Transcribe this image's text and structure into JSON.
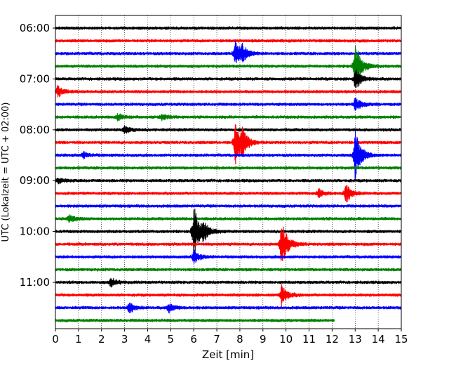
{
  "chart_data": {
    "type": "line",
    "title": "",
    "xlabel": "Zeit  [min]",
    "ylabel": "UTC (Lokalzeit = UTC + 02:00)",
    "xlim": [
      0,
      15
    ],
    "x_ticks": [
      0,
      1,
      2,
      3,
      4,
      5,
      6,
      7,
      8,
      9,
      10,
      11,
      12,
      13,
      14,
      15
    ],
    "y_tick_labels": [
      "06:00",
      "07:00",
      "08:00",
      "09:00",
      "10:00",
      "11:00"
    ],
    "grid": "vertical dotted",
    "trace_interval_min": 15,
    "colors": [
      "#000000",
      "#ff0000",
      "#0000ff",
      "#008000"
    ],
    "traces": [
      {
        "start": "06:00",
        "color": "#000000",
        "events": []
      },
      {
        "start": "06:15",
        "color": "#ff0000",
        "events": []
      },
      {
        "start": "06:30",
        "color": "#0000ff",
        "events": [
          {
            "t": 7.8,
            "amp": 1.6
          },
          {
            "t": 8.1,
            "amp": 0.9
          }
        ]
      },
      {
        "start": "06:45",
        "color": "#008000",
        "events": [
          {
            "t": 13.0,
            "amp": 3.6
          }
        ]
      },
      {
        "start": "07:00",
        "color": "#000000",
        "events": [
          {
            "t": 13.0,
            "amp": 1.5
          }
        ]
      },
      {
        "start": "07:15",
        "color": "#ff0000",
        "events": [
          {
            "t": 0.1,
            "amp": 0.8
          }
        ]
      },
      {
        "start": "07:30",
        "color": "#0000ff",
        "events": [
          {
            "t": 13.0,
            "amp": 0.9
          }
        ]
      },
      {
        "start": "07:45",
        "color": "#008000",
        "events": [
          {
            "t": 2.7,
            "amp": 0.4
          },
          {
            "t": 4.6,
            "amp": 0.4
          }
        ]
      },
      {
        "start": "08:00",
        "color": "#000000",
        "events": [
          {
            "t": 3.0,
            "amp": 0.5
          }
        ]
      },
      {
        "start": "08:15",
        "color": "#ff0000",
        "events": [
          {
            "t": 7.8,
            "amp": 2.8
          },
          {
            "t": 8.1,
            "amp": 1.5
          }
        ]
      },
      {
        "start": "08:30",
        "color": "#0000ff",
        "events": [
          {
            "t": 13.0,
            "amp": 3.5
          },
          {
            "t": 1.2,
            "amp": 0.4
          }
        ]
      },
      {
        "start": "08:45",
        "color": "#008000",
        "events": []
      },
      {
        "start": "09:00",
        "color": "#000000",
        "events": [
          {
            "t": 0.1,
            "amp": 0.4
          }
        ]
      },
      {
        "start": "09:15",
        "color": "#ff0000",
        "events": [
          {
            "t": 11.4,
            "amp": 0.6
          },
          {
            "t": 12.6,
            "amp": 1.3
          }
        ]
      },
      {
        "start": "09:30",
        "color": "#0000ff",
        "events": []
      },
      {
        "start": "09:45",
        "color": "#008000",
        "events": [
          {
            "t": 0.6,
            "amp": 0.5
          }
        ]
      },
      {
        "start": "10:00",
        "color": "#000000",
        "events": [
          {
            "t": 6.0,
            "amp": 3.6
          },
          {
            "t": 6.4,
            "amp": 1.2
          }
        ]
      },
      {
        "start": "10:15",
        "color": "#ff0000",
        "events": [
          {
            "t": 9.8,
            "amp": 3.4
          }
        ]
      },
      {
        "start": "10:30",
        "color": "#0000ff",
        "events": [
          {
            "t": 6.0,
            "amp": 0.8
          }
        ]
      },
      {
        "start": "10:45",
        "color": "#008000",
        "events": []
      },
      {
        "start": "11:00",
        "color": "#000000",
        "events": [
          {
            "t": 2.4,
            "amp": 0.6
          }
        ]
      },
      {
        "start": "11:15",
        "color": "#ff0000",
        "events": [
          {
            "t": 9.8,
            "amp": 1.4
          }
        ]
      },
      {
        "start": "11:30",
        "color": "#0000ff",
        "events": [
          {
            "t": 3.2,
            "amp": 0.7
          },
          {
            "t": 4.9,
            "amp": 0.6
          }
        ]
      },
      {
        "start": "11:45",
        "color": "#008000",
        "events": [],
        "end_min": 12.1
      }
    ]
  }
}
